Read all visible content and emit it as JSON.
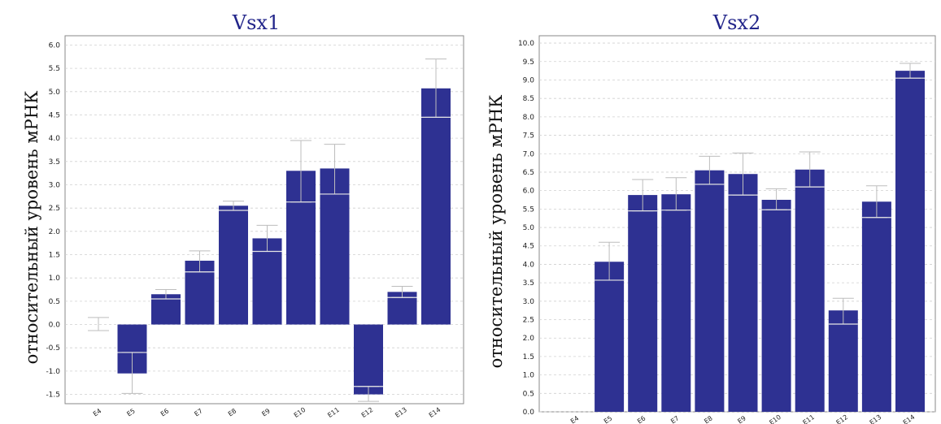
{
  "chart_data": [
    {
      "type": "bar",
      "title": "Vsx1",
      "ylabel": "относительный уровень мРНК",
      "xlabel": "",
      "categories": [
        "E4",
        "E5",
        "E6",
        "E7",
        "E8",
        "E9",
        "E10",
        "E11",
        "E12",
        "E13",
        "E14"
      ],
      "values": [
        0.0,
        -1.05,
        0.65,
        1.37,
        2.55,
        1.85,
        3.3,
        3.35,
        -1.5,
        0.7,
        5.07
      ],
      "err_low": [
        -0.13,
        -1.48,
        0.55,
        1.13,
        2.45,
        1.57,
        2.63,
        2.8,
        -1.65,
        0.58,
        4.45
      ],
      "err_high": [
        0.15,
        -0.6,
        0.75,
        1.58,
        2.65,
        2.13,
        3.95,
        3.87,
        -1.33,
        0.82,
        5.7
      ],
      "ylim": [
        -1.7,
        6.2
      ],
      "yticks": [
        "6.0",
        "5.5",
        "5.0",
        "4.5",
        "4.0",
        "3.5",
        "3.0",
        "2.5",
        "2.0",
        "1.5",
        "1.0",
        "0.5",
        "0.0",
        "-0.5",
        "-1.0",
        "-1.5"
      ],
      "grid": true,
      "color": "#2e3192"
    },
    {
      "type": "bar",
      "title": "Vsx2",
      "ylabel": "относительный уровень мРНК",
      "xlabel": "",
      "categories": [
        "E4",
        "E5",
        "E6",
        "E7",
        "E8",
        "E9",
        "E10",
        "E11",
        "E12",
        "E13",
        "E14"
      ],
      "values": [
        0.0,
        4.07,
        5.88,
        5.9,
        6.55,
        6.45,
        5.75,
        6.57,
        2.75,
        5.7,
        9.25
      ],
      "err_low": [
        0.0,
        3.57,
        5.45,
        5.47,
        6.17,
        5.88,
        5.48,
        6.1,
        2.38,
        5.27,
        9.05
      ],
      "err_high": [
        0.0,
        4.6,
        6.3,
        6.35,
        6.93,
        7.02,
        6.05,
        7.05,
        3.08,
        6.13,
        9.45
      ],
      "ylim": [
        0.0,
        10.2
      ],
      "yticks": [
        "10.0",
        "9.5",
        "9.0",
        "8.5",
        "8.0",
        "7.5",
        "7.0",
        "6.5",
        "6.0",
        "5.5",
        "5.0",
        "4.5",
        "4.0",
        "3.5",
        "3.0",
        "2.5",
        "2.0",
        "1.5",
        "1.0",
        "0.5",
        "0.0"
      ],
      "grid": true,
      "color": "#2e3192"
    }
  ]
}
